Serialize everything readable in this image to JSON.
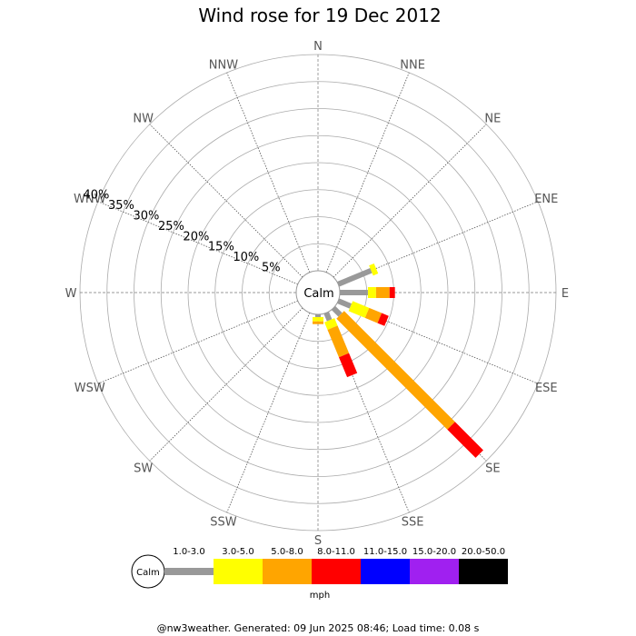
{
  "chart_data": {
    "type": "wind-rose",
    "title": "Wind rose for 19 Dec 2012",
    "directions": [
      "N",
      "NNE",
      "NE",
      "ENE",
      "E",
      "ESE",
      "SE",
      "SSE",
      "S",
      "SSW",
      "SW",
      "WSW",
      "W",
      "WNW",
      "NW",
      "NNW"
    ],
    "ring_labels": [
      "5%",
      "10%",
      "15%",
      "20%",
      "25%",
      "30%",
      "35%",
      "40%"
    ],
    "ring_values": [
      5,
      10,
      15,
      20,
      25,
      30,
      35,
      40
    ],
    "calm_label": "Calm",
    "speed_bins": [
      {
        "label": "1.0-3.0",
        "color": "#999999"
      },
      {
        "label": "3.0-5.0",
        "color": "#ffff00"
      },
      {
        "label": "5.0-8.0",
        "color": "#ffa500"
      },
      {
        "label": "8.0-11.0",
        "color": "#ff0000"
      },
      {
        "label": "11.0-15.0",
        "color": "#0000ff"
      },
      {
        "label": "15.0-20.0",
        "color": "#a020f0"
      },
      {
        "label": "20.0-50.0",
        "color": "#000000"
      }
    ],
    "series": [
      {
        "direction": "ENE",
        "values": [
          6.6,
          1.0,
          0,
          0,
          0,
          0,
          0
        ]
      },
      {
        "direction": "E",
        "values": [
          5.2,
          1.5,
          2.5,
          1.0,
          0,
          0,
          0
        ]
      },
      {
        "direction": "ESE",
        "values": [
          2.5,
          3.3,
          2.5,
          1.4,
          0,
          0,
          0
        ]
      },
      {
        "direction": "SE",
        "values": [
          1.8,
          0,
          29.0,
          7.4,
          0,
          0,
          0
        ]
      },
      {
        "direction": "SSE",
        "values": [
          1.5,
          1.5,
          5.5,
          4.0,
          0,
          0,
          0
        ]
      },
      {
        "direction": "S",
        "values": [
          0.5,
          0.8,
          0.5,
          0,
          0,
          0,
          0
        ]
      }
    ],
    "legend_unit": "mph"
  },
  "footer": "@nw3weather. Generated: 09 Jun 2025 08:46; Load time: 0.08 s"
}
